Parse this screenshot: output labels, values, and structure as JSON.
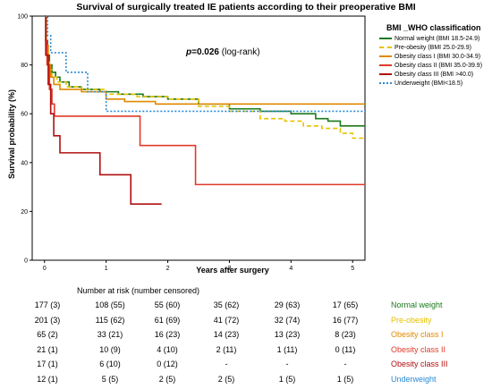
{
  "title": "Survival of surgically treated IE patients according to their preoperative BMI",
  "pvalue": {
    "prefix": "p",
    "value": "=0.026",
    "test": " (log-rank)"
  },
  "risk_table": {
    "caption": "Number at risk (number censored)",
    "rows": [
      {
        "name": "Normal weight",
        "color": "#1a7a1a",
        "cells": [
          "177 (3)",
          "108 (55)",
          "55 (60)",
          "35 (62)",
          "29 (63)",
          "17 (65)"
        ]
      },
      {
        "name": "Pre-obesity",
        "color": "#e6c200",
        "cells": [
          "201 (3)",
          "115 (62)",
          "61 (69)",
          "41 (72)",
          "32 (74)",
          "16 (77)"
        ]
      },
      {
        "name": "Obesity class I",
        "color": "#e08a00",
        "cells": [
          "65 (2)",
          "33 (21)",
          "16 (23)",
          "14 (23)",
          "13 (23)",
          "8 (23)"
        ]
      },
      {
        "name": "Obesity class II",
        "color": "#e03a2a",
        "cells": [
          "21 (1)",
          "10 (9)",
          "4 (10)",
          "2 (11)",
          "1 (11)",
          "0 (11)"
        ]
      },
      {
        "name": "Obesity class III",
        "color": "#b01010",
        "cells": [
          "17 (1)",
          "6 (10)",
          "0 (12)",
          "-",
          "-",
          "-"
        ]
      },
      {
        "name": "Underweight",
        "color": "#2a8ad4",
        "cells": [
          "12 (1)",
          "5 (5)",
          "2 (5)",
          "2 (5)",
          "1 (5)",
          "1 (5)"
        ]
      }
    ]
  },
  "chart_data": {
    "type": "line",
    "title": "Survival of surgically treated IE patients according to their preoperative BMI",
    "xlabel": "Years after surgery",
    "ylabel": "Survival probability (%)",
    "xlim": [
      -0.2,
      5.2
    ],
    "ylim": [
      0,
      100
    ],
    "xticks": [
      "0",
      "1",
      "2",
      "3",
      "4",
      "5"
    ],
    "yticks": [
      "0",
      "20",
      "40",
      "60",
      "80",
      "100"
    ],
    "grid": false,
    "legend": {
      "title": "BMI _WHO classification",
      "placement": "top-right"
    },
    "series": [
      {
        "name": "Normal weight (BMI 18.5-24.9)",
        "color": "#1a7a1a",
        "dash": "solid",
        "points": [
          [
            0,
            100
          ],
          [
            0.02,
            90
          ],
          [
            0.05,
            84
          ],
          [
            0.08,
            80
          ],
          [
            0.12,
            77
          ],
          [
            0.18,
            75
          ],
          [
            0.25,
            73
          ],
          [
            0.4,
            71
          ],
          [
            0.6,
            70
          ],
          [
            0.9,
            69
          ],
          [
            1.2,
            68
          ],
          [
            1.6,
            67
          ],
          [
            2.0,
            66
          ],
          [
            2.5,
            64
          ],
          [
            3.0,
            62
          ],
          [
            3.5,
            61
          ],
          [
            4.0,
            60
          ],
          [
            4.4,
            58
          ],
          [
            4.6,
            57
          ],
          [
            4.8,
            55
          ],
          [
            5.2,
            55
          ]
        ]
      },
      {
        "name": "Pre-obesity (BMI 25.0-29.9)",
        "color": "#e6c200",
        "dash": "dashed",
        "points": [
          [
            0,
            100
          ],
          [
            0.02,
            88
          ],
          [
            0.05,
            82
          ],
          [
            0.08,
            78
          ],
          [
            0.12,
            75
          ],
          [
            0.2,
            73
          ],
          [
            0.35,
            71
          ],
          [
            0.6,
            70
          ],
          [
            1.0,
            68
          ],
          [
            1.5,
            67
          ],
          [
            2.0,
            66
          ],
          [
            2.5,
            63
          ],
          [
            3.0,
            61
          ],
          [
            3.5,
            58
          ],
          [
            3.9,
            57
          ],
          [
            4.2,
            55
          ],
          [
            4.5,
            54
          ],
          [
            4.8,
            52
          ],
          [
            5.0,
            50
          ],
          [
            5.2,
            50
          ]
        ]
      },
      {
        "name": "Obesity class I (BMI 30.0-34.9)",
        "color": "#e08a00",
        "dash": "solid",
        "points": [
          [
            0,
            100
          ],
          [
            0.03,
            88
          ],
          [
            0.06,
            80
          ],
          [
            0.1,
            75
          ],
          [
            0.15,
            72
          ],
          [
            0.25,
            70
          ],
          [
            0.6,
            69
          ],
          [
            1.0,
            66
          ],
          [
            1.3,
            65
          ],
          [
            1.8,
            64
          ],
          [
            5.2,
            64
          ]
        ]
      },
      {
        "name": "Obesity class II (BMI 35.0-39.9)",
        "color": "#e03a2a",
        "dash": "solid",
        "points": [
          [
            0,
            100
          ],
          [
            0.02,
            90
          ],
          [
            0.04,
            80
          ],
          [
            0.08,
            70
          ],
          [
            0.12,
            64
          ],
          [
            0.16,
            59
          ],
          [
            1.55,
            59
          ],
          [
            1.55,
            47
          ],
          [
            2.45,
            47
          ],
          [
            2.45,
            31
          ],
          [
            5.2,
            31
          ]
        ]
      },
      {
        "name": "Obesity class III (BMI >40.0)",
        "color": "#b01010",
        "dash": "solid",
        "points": [
          [
            0,
            100
          ],
          [
            0.02,
            84
          ],
          [
            0.06,
            72
          ],
          [
            0.1,
            60
          ],
          [
            0.15,
            51
          ],
          [
            0.25,
            44
          ],
          [
            0.9,
            44
          ],
          [
            0.9,
            35
          ],
          [
            1.4,
            35
          ],
          [
            1.4,
            23
          ],
          [
            1.9,
            23
          ]
        ]
      },
      {
        "name": "Underweight (BMI<18.5)",
        "color": "#2a8ad4",
        "dash": "dotted",
        "points": [
          [
            0,
            100
          ],
          [
            0.05,
            92
          ],
          [
            0.1,
            85
          ],
          [
            0.35,
            85
          ],
          [
            0.35,
            77
          ],
          [
            0.7,
            77
          ],
          [
            0.7,
            69
          ],
          [
            1.0,
            69
          ],
          [
            1.0,
            61
          ],
          [
            5.2,
            61
          ]
        ]
      }
    ]
  }
}
